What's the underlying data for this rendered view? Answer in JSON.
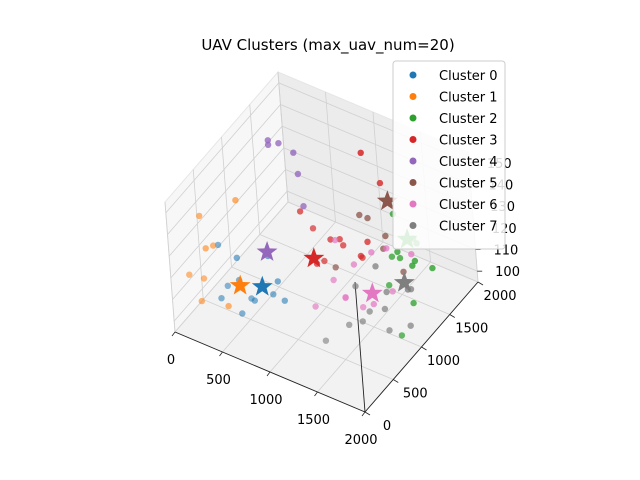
{
  "chart_data": {
    "type": "scatter",
    "title": "UAV Clusters (max_uav_num=20)",
    "x_ticks": [
      "0",
      "500",
      "1000",
      "1500",
      "2000"
    ],
    "y_ticks": [
      "0",
      "500",
      "1000",
      "1500",
      "2000"
    ],
    "z_ticks": [
      "100",
      "110",
      "120",
      "130",
      "140",
      "150"
    ],
    "xlim": [
      0,
      2000
    ],
    "ylim": [
      0,
      2000
    ],
    "zlim": [
      95,
      155
    ],
    "grid": true,
    "legend_position": "top-right",
    "series": [
      {
        "name": "Cluster 0",
        "color": "#1f77b4",
        "points": [
          [
            380,
            240,
            135
          ],
          [
            620,
            180,
            125
          ],
          [
            720,
            260,
            115
          ],
          [
            500,
            350,
            128
          ],
          [
            540,
            110,
            123
          ],
          [
            760,
            150,
            120
          ],
          [
            400,
            200,
            112
          ],
          [
            900,
            300,
            120
          ],
          [
            1000,
            330,
            118
          ],
          [
            760,
            470,
            130
          ],
          [
            600,
            220,
            108
          ],
          [
            880,
            420,
            122
          ]
        ],
        "centroid": [
          780,
          310,
          121
        ]
      },
      {
        "name": "Cluster 1",
        "color": "#ff7f0e",
        "points": [
          [
            120,
            360,
            140
          ],
          [
            90,
            170,
            118
          ],
          [
            150,
            380,
            125
          ],
          [
            110,
            310,
            102
          ],
          [
            350,
            380,
            102
          ],
          [
            420,
            520,
            148
          ],
          [
            300,
            280,
            132
          ],
          [
            260,
            150,
            120
          ]
        ],
        "centroid": [
          460,
          430,
          112
        ]
      },
      {
        "name": "Cluster 2",
        "color": "#2ca02c",
        "points": [
          [
            1720,
            1050,
            130
          ],
          [
            1760,
            1120,
            128
          ],
          [
            1650,
            1250,
            125
          ],
          [
            1800,
            1300,
            122
          ],
          [
            1900,
            1200,
            135
          ],
          [
            2000,
            1000,
            145
          ],
          [
            1950,
            1350,
            120
          ],
          [
            1850,
            1150,
            108
          ],
          [
            1700,
            1400,
            115
          ],
          [
            1850,
            920,
            100
          ],
          [
            1700,
            1000,
            118
          ],
          [
            1600,
            1300,
            140
          ]
        ],
        "centroid": [
          1800,
          1200,
          135
        ]
      },
      {
        "name": "Cluster 3",
        "color": "#d62728",
        "points": [
          [
            1100,
            1600,
            150
          ],
          [
            1450,
            1350,
            150
          ],
          [
            820,
            960,
            137
          ],
          [
            1080,
            760,
            140
          ],
          [
            1400,
            1150,
            128
          ],
          [
            1200,
            1000,
            130
          ],
          [
            1150,
            800,
            125
          ],
          [
            1500,
            900,
            130
          ],
          [
            1300,
            900,
            132
          ],
          [
            1100,
            1000,
            128
          ],
          [
            1350,
            1100,
            122
          ],
          [
            1000,
            900,
            118
          ]
        ],
        "centroid": [
          1050,
          780,
          125
        ]
      },
      {
        "name": "Cluster 4",
        "color": "#9467bd",
        "points": [
          [
            480,
            1200,
            155
          ],
          [
            380,
            1180,
            153
          ],
          [
            500,
            1400,
            145
          ],
          [
            300,
            1300,
            150
          ],
          [
            600,
            1300,
            140
          ],
          [
            700,
            1200,
            130
          ]
        ],
        "centroid": [
          600,
          700,
          122
        ]
      },
      {
        "name": "Cluster 5",
        "color": "#8c564b",
        "points": [
          [
            1300,
            1200,
            137
          ],
          [
            1400,
            1180,
            138
          ],
          [
            1600,
            1100,
            130
          ],
          [
            1500,
            1300,
            128
          ],
          [
            1800,
            1100,
            123
          ],
          [
            1200,
            900,
            120
          ]
        ],
        "centroid": [
          1550,
          1300,
          145
        ]
      },
      {
        "name": "Cluster 6",
        "color": "#e377c2",
        "points": [
          [
            1250,
            850,
            135
          ],
          [
            1500,
            1050,
            128
          ],
          [
            1400,
            900,
            125
          ],
          [
            1300,
            700,
            122
          ],
          [
            1450,
            650,
            118
          ],
          [
            1600,
            700,
            115
          ],
          [
            1150,
            600,
            110
          ],
          [
            1700,
            1000,
            135
          ],
          [
            1800,
            900,
            120
          ],
          [
            1900,
            1100,
            133
          ],
          [
            1350,
            800,
            112
          ],
          [
            1550,
            950,
            108
          ]
        ],
        "centroid": [
          1530,
          970,
          112
        ]
      },
      {
        "name": "Cluster 7",
        "color": "#7f7f7f",
        "points": [
          [
            1500,
            1100,
            120
          ],
          [
            1700,
            900,
            110
          ],
          [
            1800,
            800,
            105
          ],
          [
            1900,
            1000,
            103
          ],
          [
            1600,
            800,
            110
          ],
          [
            1500,
            600,
            108
          ],
          [
            1800,
            1200,
            112
          ],
          [
            1700,
            1300,
            107
          ],
          [
            1300,
            500,
            100
          ],
          [
            1400,
            900,
            115
          ],
          [
            1600,
            1100,
            110
          ],
          [
            1550,
            750,
            106
          ]
        ],
        "centroid": [
          1800,
          1100,
          118
        ]
      }
    ]
  }
}
